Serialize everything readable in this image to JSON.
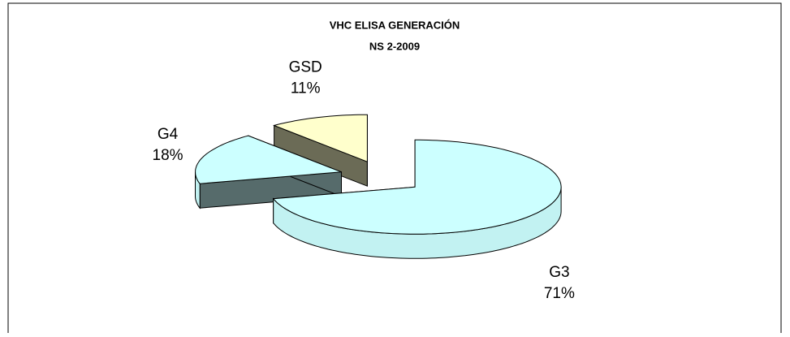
{
  "chart_data": {
    "type": "pie3d",
    "title": "VHC  ELISA GENERACIÓN",
    "subtitle": "NS 2-2009",
    "categories": [
      "G3",
      "G4",
      "GSD"
    ],
    "values": [
      71,
      18,
      11
    ],
    "value_labels": [
      "71%",
      "18%",
      "11%"
    ],
    "colors": [
      "#ccffff",
      "#ccffff",
      "#ffffcc"
    ]
  }
}
